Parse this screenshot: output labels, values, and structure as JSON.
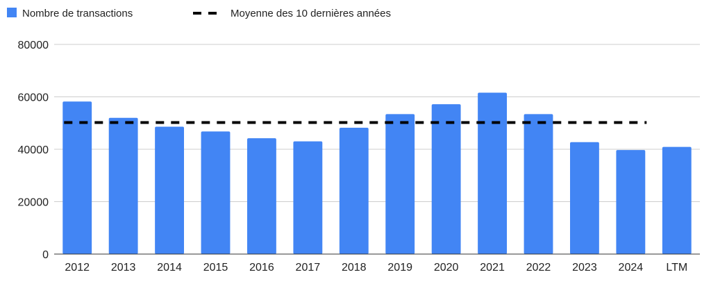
{
  "chart_data": {
    "type": "bar",
    "categories": [
      "2012",
      "2013",
      "2014",
      "2015",
      "2016",
      "2017",
      "2018",
      "2019",
      "2020",
      "2021",
      "2022",
      "2023",
      "2024",
      "LTM"
    ],
    "series": [
      {
        "name": "Nombre de transactions",
        "color": "#4285f4",
        "values": [
          58200,
          52000,
          48600,
          46800,
          44200,
          43000,
          48200,
          53400,
          57200,
          61600,
          53400,
          42700,
          39700,
          40900
        ]
      }
    ],
    "reference_line": {
      "name": "Moyenne des 10 dernières années",
      "color": "#000000",
      "style": "dashed",
      "value": 50200,
      "from_category": "2012",
      "to_category": "2024"
    },
    "y_ticks": [
      "0",
      "20000",
      "40000",
      "60000",
      "80000"
    ],
    "ylim": [
      0,
      80000
    ],
    "grid": true,
    "legend_position": "top-left",
    "title": "",
    "xlabel": "",
    "ylabel": ""
  }
}
